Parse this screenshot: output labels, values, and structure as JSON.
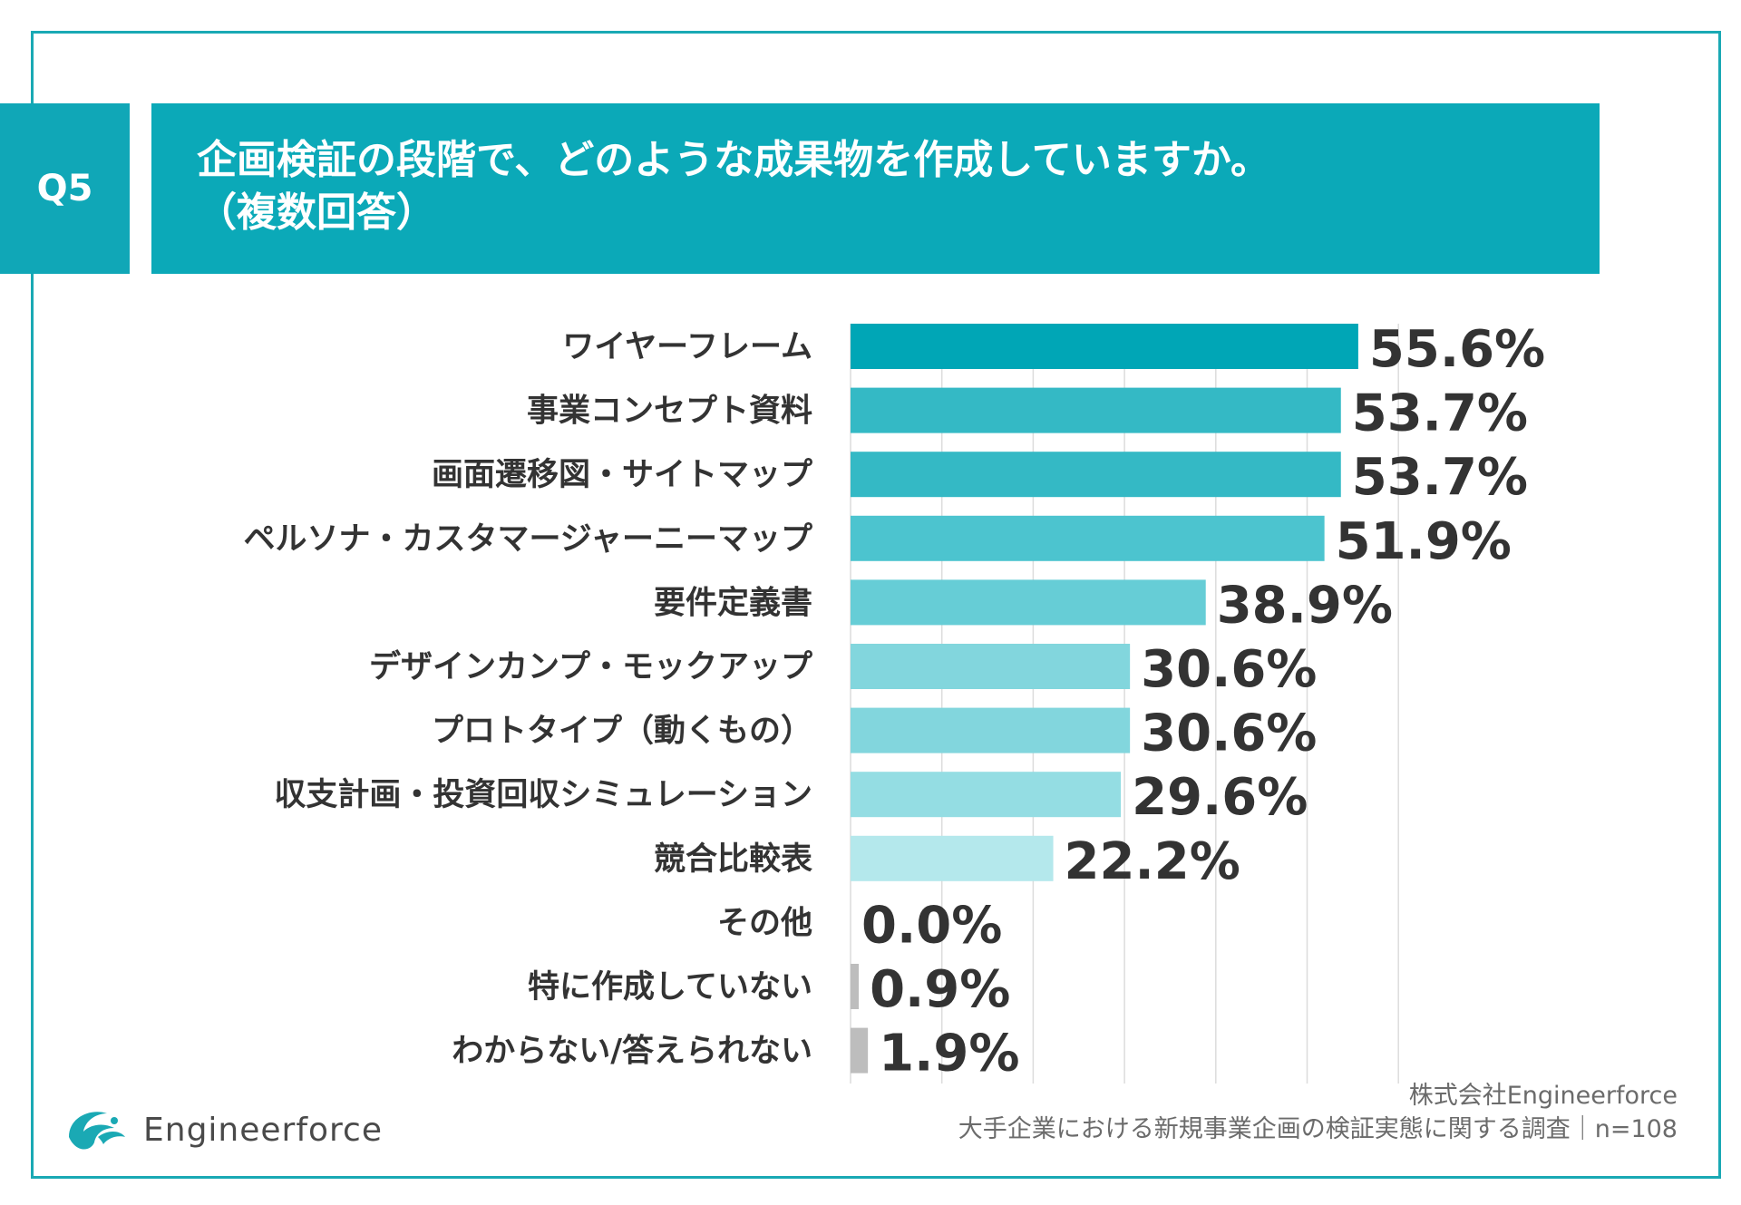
{
  "header": {
    "badge": "Q5",
    "title_line1": "企画検証の段階で、どのような成果物を作成していますか。",
    "title_line2": "（複数回答）"
  },
  "chart_data": {
    "type": "bar",
    "orientation": "horizontal",
    "title": "企画検証の段階で、どのような成果物を作成していますか。（複数回答）",
    "categories": [
      "ワイヤーフレーム",
      "事業コンセプト資料",
      "画面遷移図・サイトマップ",
      "ペルソナ・カスタマージャーニーマップ",
      "要件定義書",
      "デザインカンプ・モックアップ",
      "プロトタイプ（動くもの）",
      "収支計画・投資回収シミュレーション",
      "競合比較表",
      "その他",
      "特に作成していない",
      "わからない/答えられない"
    ],
    "values": [
      55.6,
      53.7,
      53.7,
      51.9,
      38.9,
      30.6,
      30.6,
      29.6,
      22.2,
      0.0,
      0.9,
      1.9
    ],
    "value_labels": [
      "55.6%",
      "53.7%",
      "53.7%",
      "51.9%",
      "38.9%",
      "30.6%",
      "30.6%",
      "29.6%",
      "22.2%",
      "0.0%",
      "0.9%",
      "1.9%"
    ],
    "colors": [
      "#00a6b6",
      "#34b9c5",
      "#34b9c5",
      "#4cc4cf",
      "#66cdd6",
      "#82d6dd",
      "#82d6dd",
      "#94dde3",
      "#b4e8ec",
      "#bdbdbd",
      "#bdbdbd",
      "#bdbdbd"
    ],
    "xlim": [
      0,
      60
    ],
    "unit": "%",
    "grid": true,
    "gridline_interval": 10
  },
  "footer": {
    "company": "株式会社Engineerforce",
    "survey": "大手企業における新規事業企画の検証実態に関する調査｜n=108"
  },
  "brand": {
    "name": "Engineerforce",
    "logo_icon": "seagull-wave-icon",
    "logo_color": "#1aa9b4"
  }
}
